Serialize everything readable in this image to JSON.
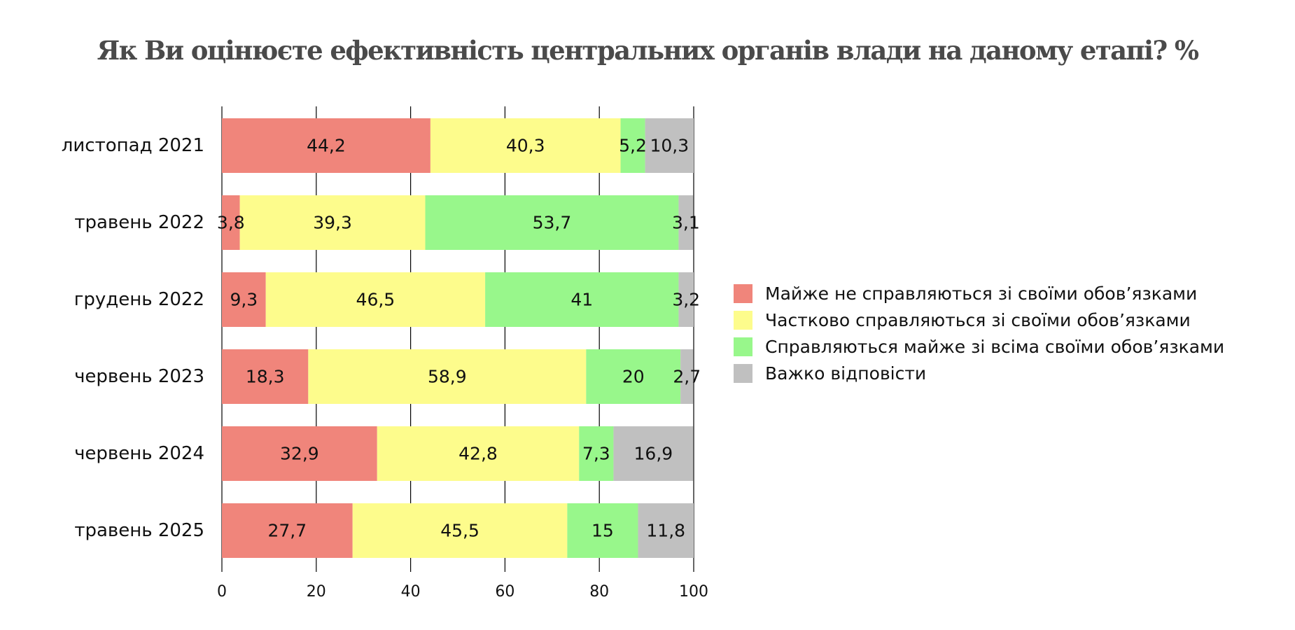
{
  "chart_data": {
    "type": "bar",
    "orientation": "horizontal",
    "stacked": true,
    "title": "Як Ви оцінюєте ефективність центральних органів влади на даному етапі? %",
    "categories": [
      "листопад 2021",
      "травень 2022",
      "грудень 2022",
      "червень 2023",
      "червень 2024",
      "травень 2025"
    ],
    "series": [
      {
        "name": "Майже не справляються зі своїми обов’язками",
        "color": "#f0857b",
        "values": [
          44.2,
          3.8,
          9.3,
          18.3,
          32.9,
          27.7
        ],
        "labels": [
          "44,2",
          "3,8",
          "9,3",
          "18,3",
          "32,9",
          "27,7"
        ]
      },
      {
        "name": "Частково справляються зі своїми обов’язками",
        "color": "#fdfc8c",
        "values": [
          40.3,
          39.3,
          46.5,
          58.9,
          42.8,
          45.5
        ],
        "labels": [
          "40,3",
          "39,3",
          "46,5",
          "58,9",
          "42,8",
          "45,5"
        ]
      },
      {
        "name": "Справляються майже зі всіма своїми обов’язками",
        "color": "#98f78b",
        "values": [
          5.2,
          53.7,
          41,
          20,
          7.3,
          15
        ],
        "labels": [
          "5,2",
          "53,7",
          "41",
          "20",
          "7,3",
          "15"
        ]
      },
      {
        "name": "Важко відповісти",
        "color": "#c0c0c0",
        "values": [
          10.3,
          3.1,
          3.2,
          2.7,
          16.9,
          11.8
        ],
        "labels": [
          "10,3",
          "3,1",
          "3,2",
          "2,7",
          "16,9",
          "11,8"
        ]
      }
    ],
    "xlim": [
      0,
      100
    ],
    "xticks": [
      0,
      20,
      40,
      60,
      80,
      100
    ],
    "xtick_labels": [
      "0",
      "20",
      "40",
      "60",
      "80",
      "100"
    ],
    "grid": true,
    "legend_position": "right"
  }
}
